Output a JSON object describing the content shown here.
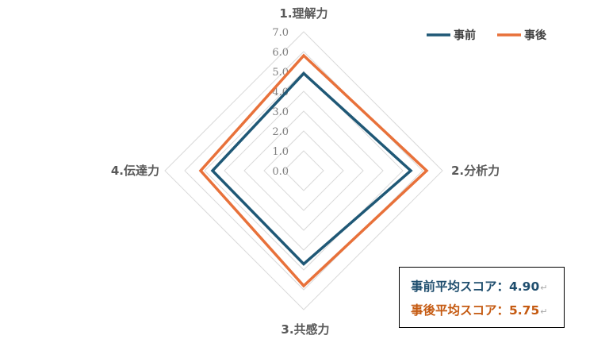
{
  "chart_data": {
    "type": "radar",
    "axes": [
      "1.理解力",
      "2.分析力",
      "3.共感力",
      "4.伝達力"
    ],
    "rlim": [
      0,
      7
    ],
    "ticks": [
      "0.0",
      "1.0",
      "2.0",
      "3.0",
      "4.0",
      "5.0",
      "6.0",
      "7.0"
    ],
    "grid": true,
    "legend_position": "top-right",
    "series": [
      {
        "name": "事前",
        "color": "#1f5876",
        "values": [
          4.9,
          5.4,
          4.7,
          4.6
        ]
      },
      {
        "name": "事後",
        "color": "#e8713a",
        "values": [
          5.8,
          6.2,
          5.8,
          5.2
        ]
      }
    ]
  },
  "summary": {
    "before_label": "事前平均スコア：4.90",
    "after_label": "事後平均スコア：5.75",
    "return_mark": "↵",
    "before_color": "#1f4e6e",
    "after_color": "#c55a11"
  }
}
